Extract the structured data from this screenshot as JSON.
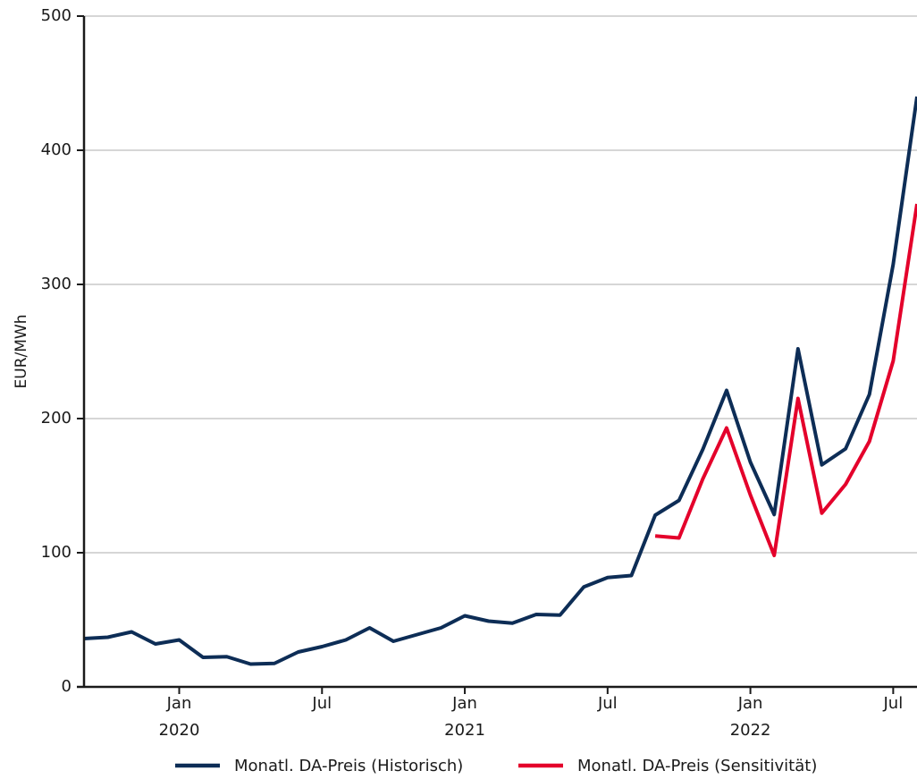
{
  "chart_data": {
    "type": "line",
    "ylabel": "EUR/MWh",
    "ylim": [
      0,
      500
    ],
    "yticks": [
      0,
      100,
      200,
      300,
      400,
      500
    ],
    "xlim": [
      "2019-09-01",
      "2022-08-01"
    ],
    "x_ticks": [
      {
        "date": "2020-01-01",
        "label": "Jan",
        "year": "2020"
      },
      {
        "date": "2020-07-01",
        "label": "Jul",
        "year": ""
      },
      {
        "date": "2021-01-01",
        "label": "Jan",
        "year": "2021"
      },
      {
        "date": "2021-07-01",
        "label": "Jul",
        "year": ""
      },
      {
        "date": "2022-01-01",
        "label": "Jan",
        "year": "2022"
      },
      {
        "date": "2022-07-01",
        "label": "Jul",
        "year": ""
      }
    ],
    "grid": "horizontal",
    "legend_position": "bottom",
    "series": [
      {
        "name": "Monatl. DA-Preis (Historisch)",
        "color": "#0d2d56",
        "x": [
          "2019-09",
          "2019-10",
          "2019-11",
          "2019-12",
          "2020-01",
          "2020-02",
          "2020-03",
          "2020-04",
          "2020-05",
          "2020-06",
          "2020-07",
          "2020-08",
          "2020-09",
          "2020-10",
          "2020-11",
          "2020-12",
          "2021-01",
          "2021-02",
          "2021-03",
          "2021-04",
          "2021-05",
          "2021-06",
          "2021-07",
          "2021-08",
          "2021-09",
          "2021-10",
          "2021-11",
          "2021-12",
          "2022-01",
          "2022-02",
          "2022-03",
          "2022-04",
          "2022-05",
          "2022-06",
          "2022-07",
          "2022-08"
        ],
        "values": [
          36,
          37,
          41,
          32,
          35,
          22,
          22.5,
          17,
          17.5,
          26,
          30,
          35,
          44,
          34,
          39,
          44,
          53,
          49,
          47.5,
          54,
          53.5,
          74.5,
          81.5,
          83,
          128,
          139,
          177,
          221,
          167.5,
          128.5,
          252,
          165.5,
          177.5,
          218,
          315,
          440
        ]
      },
      {
        "name": "Monatl. DA-Preis (Sensitivität)",
        "color": "#e4002b",
        "x": [
          "2021-09",
          "2021-10",
          "2021-11",
          "2021-12",
          "2022-01",
          "2022-02",
          "2022-03",
          "2022-04",
          "2022-05",
          "2022-06",
          "2022-07",
          "2022-08"
        ],
        "values": [
          112.5,
          111,
          155,
          193,
          143,
          98,
          215,
          129.5,
          151,
          183,
          243,
          360
        ]
      }
    ]
  }
}
